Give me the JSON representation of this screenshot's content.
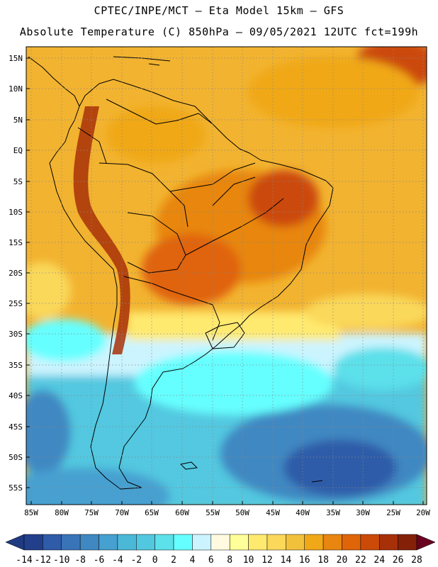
{
  "header": {
    "line1": "CPTEC/INPE/MCT –  Eta Model 15km – GFS",
    "line2": "Absolute Temperature (C) 850hPa – 09/05/2021 12UTC fct=199h"
  },
  "map": {
    "lat_labels": [
      "15N",
      "10N",
      "5N",
      "EQ",
      "5S",
      "10S",
      "15S",
      "20S",
      "25S",
      "30S",
      "35S",
      "40S",
      "45S",
      "50S",
      "55S"
    ],
    "lon_labels": [
      "85W",
      "80W",
      "75W",
      "70W",
      "65W",
      "60W",
      "55W",
      "50W",
      "45W",
      "40W",
      "35W",
      "30W",
      "25W",
      "20W"
    ]
  },
  "colorbar": {
    "labels": [
      "-14",
      "-12",
      "-10",
      "-8",
      "-6",
      "-4",
      "-2",
      "0",
      "2",
      "4",
      "6",
      "8",
      "10",
      "12",
      "14",
      "16",
      "18",
      "20",
      "22",
      "24",
      "26",
      "28"
    ],
    "colors": [
      "#223f8c",
      "#2f5ba8",
      "#3a74b8",
      "#3f88c2",
      "#46a0d0",
      "#4cb8d8",
      "#52c8e0",
      "#5ce0ea",
      "#66ffff",
      "#ccf4ff",
      "#fffae0",
      "#ffff9a",
      "#ffea70",
      "#fad85a",
      "#f2c13c",
      "#f0a818",
      "#e88610",
      "#e06408",
      "#cc4a08",
      "#a83008",
      "#842008"
    ],
    "left_arrow_color": "#1f3a80",
    "right_arrow_color": "#6a0020"
  }
}
